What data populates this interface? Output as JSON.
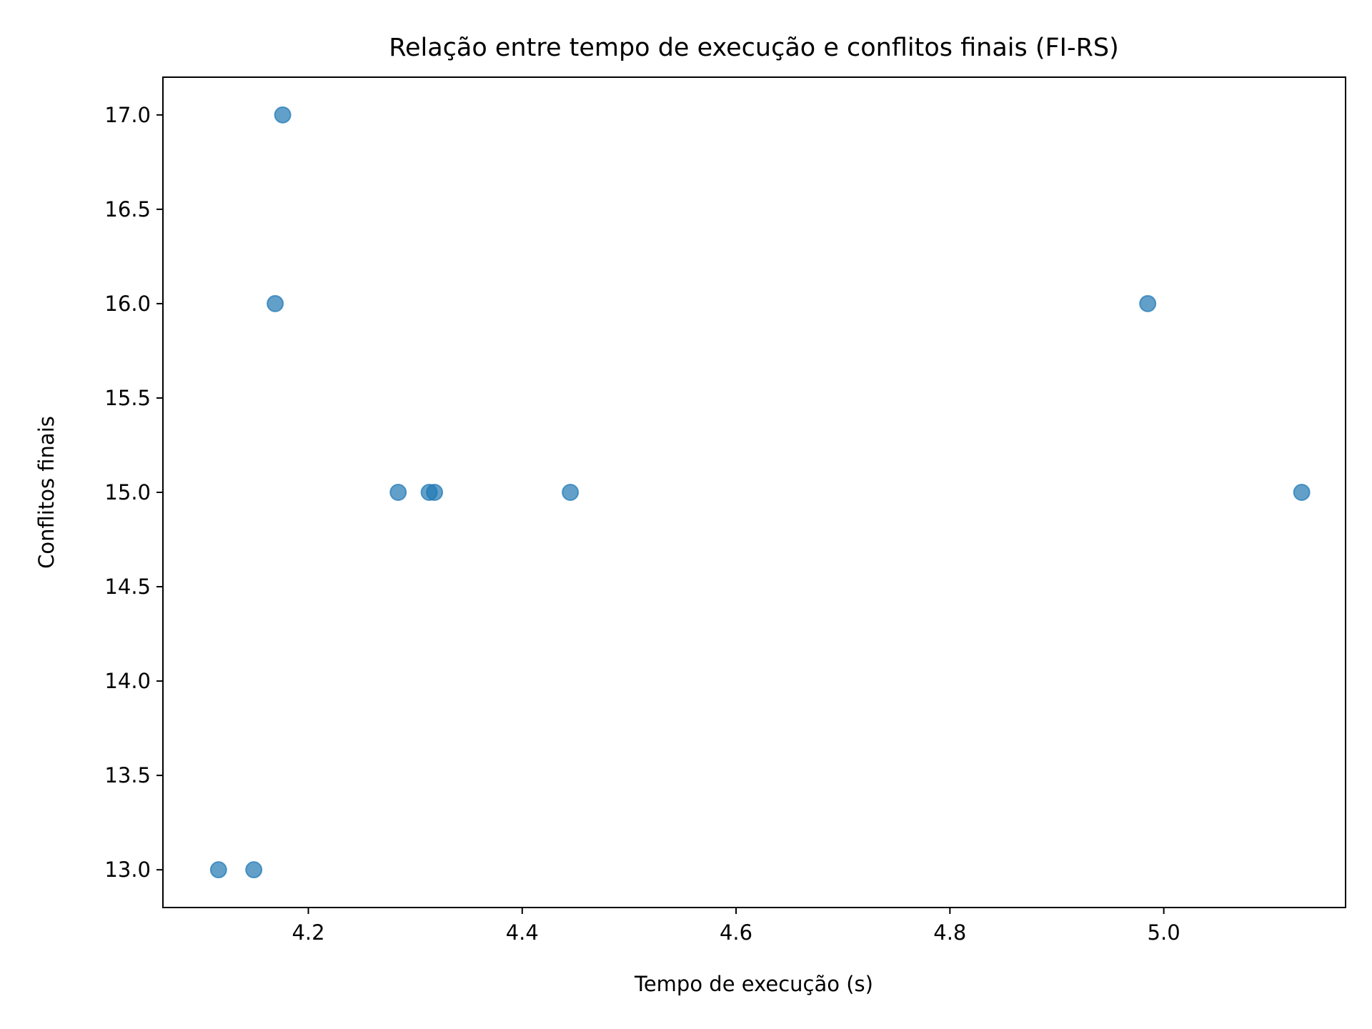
{
  "chart_data": {
    "type": "scatter",
    "title": "Relação entre tempo de execução e conflitos finais (FI-RS)",
    "xlabel": "Tempo de execução (s)",
    "ylabel": "Conflitos finais",
    "xlim": [
      4.064,
      5.17
    ],
    "ylim": [
      12.8,
      17.2
    ],
    "xticks": [
      4.2,
      4.4,
      4.6,
      4.8,
      5.0
    ],
    "xtick_labels": [
      "4.2",
      "4.4",
      "4.6",
      "4.8",
      "5.0"
    ],
    "yticks": [
      13.0,
      13.5,
      14.0,
      14.5,
      15.0,
      15.5,
      16.0,
      16.5,
      17.0
    ],
    "ytick_labels": [
      "13.0",
      "13.5",
      "14.0",
      "14.5",
      "15.0",
      "15.5",
      "16.0",
      "16.5",
      "17.0"
    ],
    "grid": false,
    "point_color": "#1f77b4",
    "point_alpha": 0.7,
    "points": [
      {
        "x": 4.176,
        "y": 17
      },
      {
        "x": 4.169,
        "y": 16
      },
      {
        "x": 4.985,
        "y": 16
      },
      {
        "x": 4.284,
        "y": 15
      },
      {
        "x": 4.313,
        "y": 15
      },
      {
        "x": 4.318,
        "y": 15
      },
      {
        "x": 4.445,
        "y": 15
      },
      {
        "x": 5.129,
        "y": 15
      },
      {
        "x": 4.116,
        "y": 13
      },
      {
        "x": 4.149,
        "y": 13
      }
    ]
  }
}
